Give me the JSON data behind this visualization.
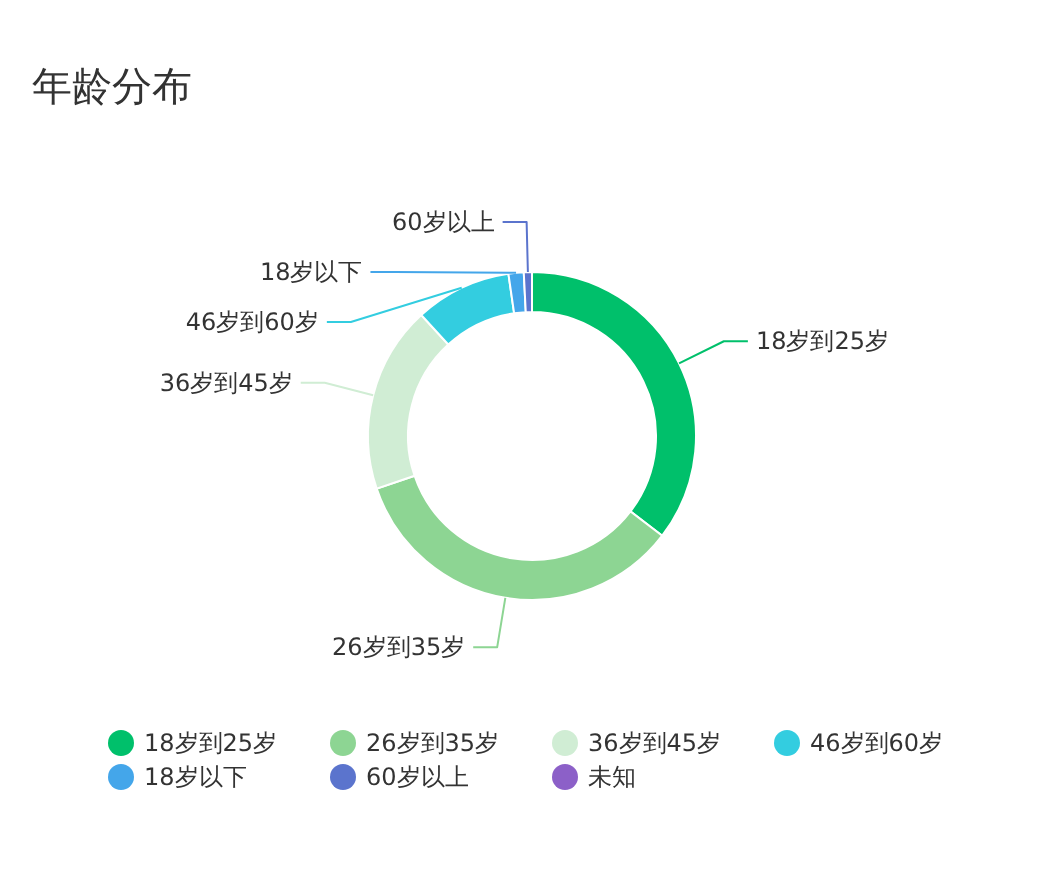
{
  "chart_data": {
    "type": "donut",
    "title": "年龄分布",
    "categories": [
      "18岁到25岁",
      "26岁到35岁",
      "36岁到45岁",
      "46岁到60岁",
      "18岁以下",
      "60岁以上",
      "未知"
    ],
    "values": [
      35.4,
      34.4,
      18.4,
      9.5,
      1.5,
      0.8,
      null
    ],
    "colors": [
      "#00c06b",
      "#8dd593",
      "#d0edd4",
      "#33cde0",
      "#44a6ea",
      "#5b74cd",
      "#8c60c8"
    ],
    "legend": "bottom"
  }
}
